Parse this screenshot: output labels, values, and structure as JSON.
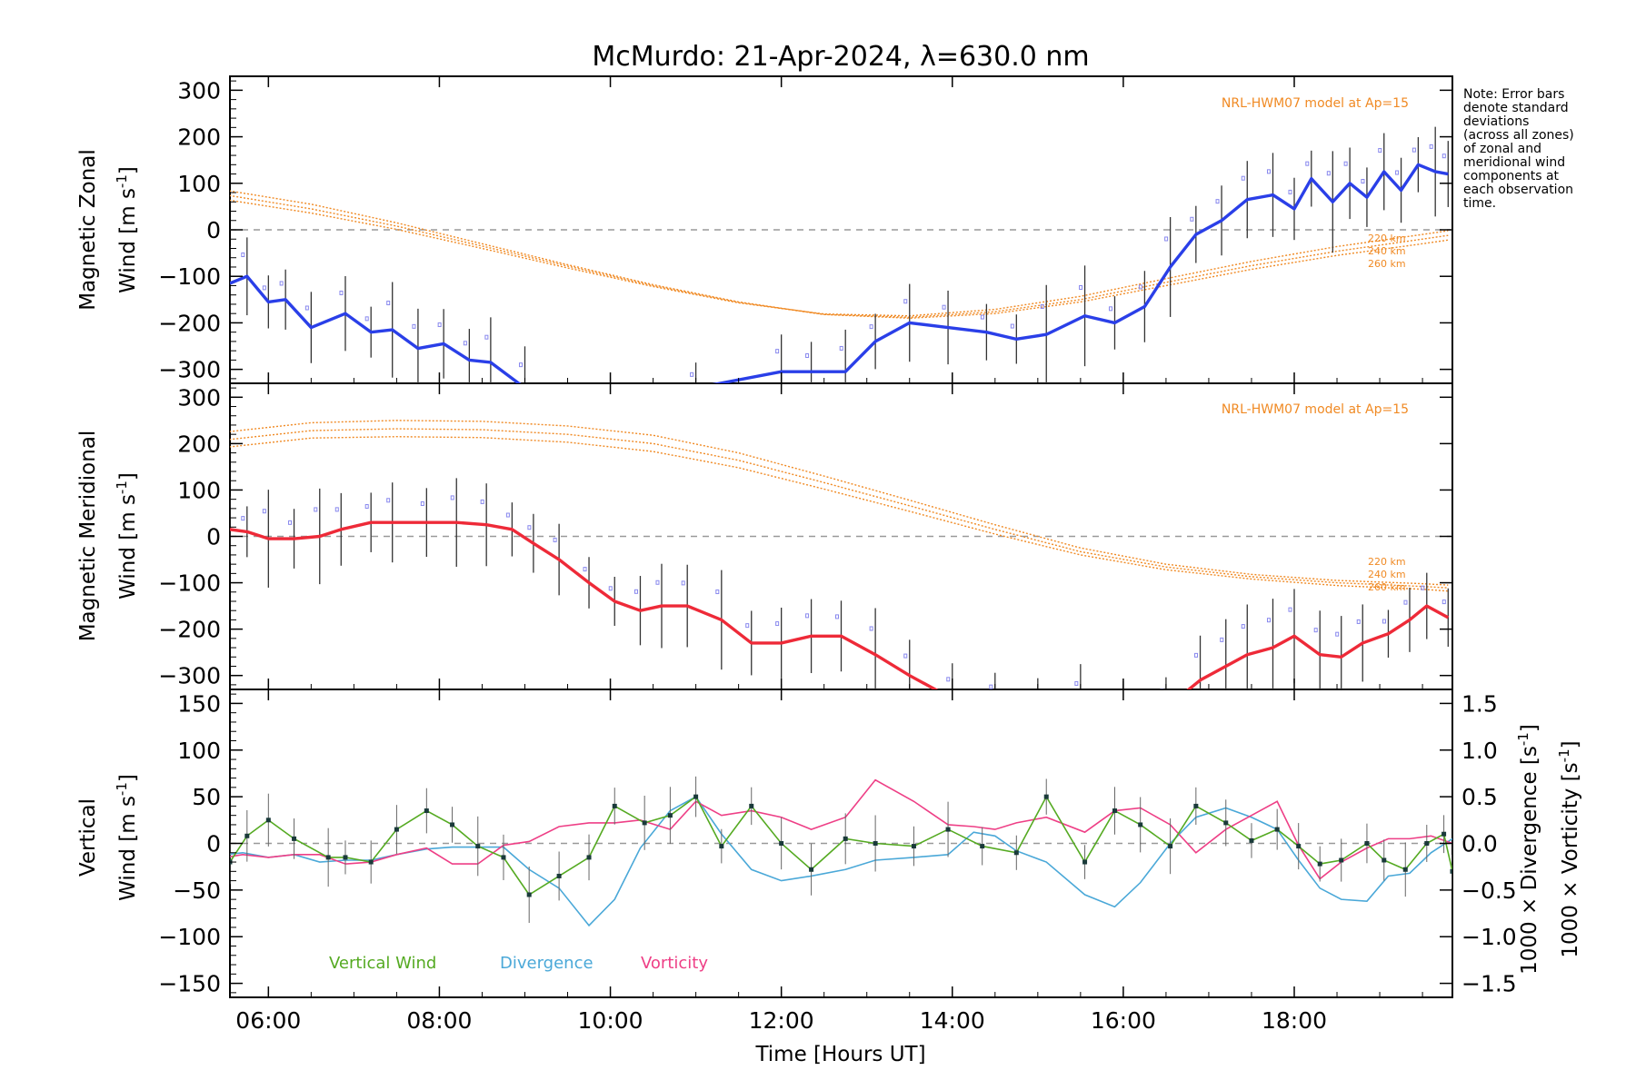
{
  "title": "McMurdo: 21-Apr-2024, λ=630.0 nm",
  "note_lines": [
    "Note: Error bars",
    "denote standard",
    "deviations",
    "(across all zones)",
    "of zonal and",
    "meridional wind",
    "components at",
    "each observation",
    "time."
  ],
  "colors": {
    "zonal": "#2a3fe8",
    "meridional": "#ee2a38",
    "vertical": "#55aa22",
    "divergence": "#4aa8d8",
    "vorticity": "#ee3f86",
    "model": "#f08a24",
    "zero_line": "#999999",
    "errorbar": "#333333"
  },
  "chart_data": [
    {
      "type": "line",
      "name": "zonal",
      "ylabel_line1": "Magnetic Zonal",
      "ylabel_line2_text": "Wind ",
      "ylabel_units": "[m s",
      "ylabel_sup": "-1",
      "ylabel_close": "]",
      "ylim": [
        -330,
        330
      ],
      "yticks": [
        -300,
        -200,
        -100,
        0,
        100,
        200,
        300
      ],
      "model_label": "NRL-HWM07 model at Ap=15",
      "model_alt_labels": [
        "220 km",
        "240 km",
        "260 km"
      ],
      "x": [
        5.55,
        5.75,
        6.0,
        6.2,
        6.5,
        6.9,
        7.2,
        7.45,
        7.75,
        8.05,
        8.35,
        8.6,
        9.0,
        11.0,
        12.0,
        12.35,
        12.75,
        13.1,
        13.5,
        13.95,
        14.4,
        14.75,
        15.1,
        15.55,
        15.9,
        16.25,
        16.55,
        16.85,
        17.15,
        17.45,
        17.75,
        18.0,
        18.2,
        18.45,
        18.65,
        18.85,
        19.05,
        19.25,
        19.45,
        19.65,
        19.8
      ],
      "values": [
        -115,
        -100,
        -155,
        -150,
        -210,
        -180,
        -220,
        -215,
        -255,
        -245,
        -280,
        -285,
        -340,
        -340,
        -305,
        -305,
        -305,
        -240,
        -200,
        -210,
        -220,
        -235,
        -225,
        -185,
        -200,
        -165,
        -80,
        -10,
        20,
        65,
        75,
        45,
        110,
        60,
        100,
        70,
        125,
        85,
        140,
        125,
        120
      ],
      "model_series": [
        {
          "name": "220 km",
          "x": [
            5.5,
            6.5,
            7.5,
            8.5,
            9.5,
            10.5,
            11.5,
            12.5,
            13.5,
            14.5,
            15.5,
            16.5,
            17.5,
            18.5,
            19.5,
            19.8
          ],
          "values": [
            85,
            55,
            15,
            -30,
            -75,
            -118,
            -155,
            -182,
            -190,
            -180,
            -155,
            -120,
            -85,
            -55,
            -30,
            -22
          ]
        },
        {
          "name": "240 km",
          "x": [
            5.5,
            6.5,
            7.5,
            8.5,
            9.5,
            10.5,
            11.5,
            12.5,
            13.5,
            14.5,
            15.5,
            16.5,
            17.5,
            18.5,
            19.5,
            19.8
          ],
          "values": [
            75,
            45,
            8,
            -35,
            -78,
            -120,
            -156,
            -182,
            -188,
            -176,
            -150,
            -113,
            -77,
            -46,
            -20,
            -12
          ]
        },
        {
          "name": "260 km",
          "x": [
            5.5,
            6.5,
            7.5,
            8.5,
            9.5,
            10.5,
            11.5,
            12.5,
            13.5,
            14.5,
            15.5,
            16.5,
            17.5,
            18.5,
            19.5,
            19.8
          ],
          "values": [
            65,
            36,
            1,
            -40,
            -82,
            -122,
            -157,
            -181,
            -185,
            -171,
            -143,
            -105,
            -68,
            -36,
            -10,
            -2
          ]
        }
      ]
    },
    {
      "type": "line",
      "name": "meridional",
      "ylabel_line1": "Magnetic Meridional",
      "ylabel_line2_text": "Wind ",
      "ylabel_units": "[m s",
      "ylabel_sup": "-1",
      "ylabel_close": "]",
      "ylim": [
        -330,
        330
      ],
      "yticks": [
        -300,
        -200,
        -100,
        0,
        100,
        200,
        300
      ],
      "model_label": "NRL-HWM07 model at Ap=15",
      "model_alt_labels": [
        "220 km",
        "240 km",
        "260 km"
      ],
      "x": [
        5.55,
        5.75,
        6.0,
        6.3,
        6.6,
        6.85,
        7.2,
        7.45,
        7.85,
        8.2,
        8.55,
        8.85,
        9.1,
        9.4,
        9.75,
        10.05,
        10.35,
        10.6,
        10.9,
        11.3,
        11.65,
        12.0,
        12.35,
        12.7,
        13.1,
        13.5,
        14.0,
        14.5,
        15.0,
        15.5,
        16.0,
        16.5,
        16.9,
        17.2,
        17.45,
        17.75,
        18.0,
        18.3,
        18.55,
        18.8,
        19.1,
        19.35,
        19.55,
        19.8
      ],
      "values": [
        15,
        10,
        -5,
        -5,
        0,
        15,
        30,
        30,
        30,
        30,
        25,
        15,
        -15,
        -50,
        -100,
        -140,
        -160,
        -150,
        -150,
        -180,
        -230,
        -230,
        -215,
        -215,
        -255,
        -300,
        -350,
        -360,
        -370,
        -370,
        -370,
        -370,
        -310,
        -280,
        -255,
        -240,
        -215,
        -255,
        -260,
        -230,
        -210,
        -180,
        -150,
        -175
      ],
      "model_series": [
        {
          "name": "220 km",
          "x": [
            5.5,
            6.5,
            7.5,
            8.5,
            9.5,
            10.5,
            11.5,
            12.5,
            13.5,
            14.5,
            15.5,
            16.5,
            17.5,
            18.5,
            19.5,
            19.8
          ],
          "values": [
            225,
            245,
            250,
            248,
            238,
            218,
            180,
            130,
            78,
            25,
            -25,
            -60,
            -82,
            -95,
            -102,
            -105
          ]
        },
        {
          "name": "240 km",
          "x": [
            5.5,
            6.5,
            7.5,
            8.5,
            9.5,
            10.5,
            11.5,
            12.5,
            13.5,
            14.5,
            15.5,
            16.5,
            17.5,
            18.5,
            19.5,
            19.8
          ],
          "values": [
            208,
            228,
            232,
            230,
            220,
            200,
            164,
            116,
            66,
            15,
            -33,
            -66,
            -87,
            -100,
            -108,
            -111
          ]
        },
        {
          "name": "260 km",
          "x": [
            5.5,
            6.5,
            7.5,
            8.5,
            9.5,
            10.5,
            11.5,
            12.5,
            13.5,
            14.5,
            15.5,
            16.5,
            17.5,
            18.5,
            19.5,
            19.8
          ],
          "values": [
            192,
            212,
            215,
            213,
            203,
            183,
            148,
            102,
            54,
            5,
            -40,
            -72,
            -92,
            -106,
            -114,
            -118
          ]
        }
      ]
    },
    {
      "type": "line",
      "name": "vertical",
      "ylabel_line1": "Vertical",
      "ylabel_line2_text": "Wind ",
      "ylabel_units": "[m s",
      "ylabel_sup": "-1",
      "ylabel_close": "]",
      "ylim": [
        -165,
        165
      ],
      "yticks": [
        -150,
        -100,
        -50,
        0,
        50,
        100,
        150
      ],
      "y2lim": [
        -1.65,
        1.65
      ],
      "y2ticks": [
        -1.5,
        -1.0,
        -0.5,
        0.0,
        0.5,
        1.0,
        1.5
      ],
      "y2ticklabels": [
        "−1.5",
        "−1.0",
        "−0.5",
        "0.0",
        "0.5",
        "1.0",
        "1.5"
      ],
      "y2label_div_prefix": "1000 × Divergence ",
      "y2label_vor_prefix": "1000 × Vorticity ",
      "y2label_units": "[s",
      "y2label_sup": "-1",
      "y2label_close": "]",
      "legend": [
        "Vertical Wind",
        "Divergence",
        "Vorticity"
      ],
      "series": [
        {
          "name": "Vertical Wind",
          "x": [
            5.55,
            5.75,
            6.0,
            6.3,
            6.7,
            6.9,
            7.2,
            7.5,
            7.85,
            8.15,
            8.45,
            8.75,
            9.05,
            9.4,
            9.75,
            10.05,
            10.4,
            10.7,
            11.0,
            11.3,
            11.65,
            12.0,
            12.35,
            12.75,
            13.1,
            13.55,
            13.95,
            14.35,
            14.75,
            15.1,
            15.55,
            15.9,
            16.2,
            16.55,
            16.85,
            17.2,
            17.5,
            17.8,
            18.05,
            18.3,
            18.55,
            18.85,
            19.05,
            19.3,
            19.55,
            19.75,
            19.85
          ],
          "values": [
            -20,
            8,
            25,
            5,
            -15,
            -15,
            -20,
            15,
            35,
            20,
            -3,
            -15,
            -55,
            -35,
            -15,
            40,
            22,
            30,
            50,
            -3,
            40,
            0,
            -28,
            5,
            0,
            -3,
            15,
            -3,
            -10,
            50,
            -20,
            35,
            20,
            -3,
            40,
            22,
            3,
            15,
            -3,
            -22,
            -18,
            0,
            -18,
            -28,
            0,
            10,
            -30
          ]
        },
        {
          "name": "Divergence",
          "x": [
            5.5,
            5.7,
            6.0,
            6.3,
            6.6,
            6.9,
            7.2,
            7.5,
            7.85,
            8.15,
            8.45,
            8.75,
            9.05,
            9.4,
            9.75,
            10.05,
            10.35,
            10.7,
            11.0,
            11.3,
            11.65,
            12.0,
            12.35,
            12.75,
            13.1,
            13.55,
            13.95,
            14.25,
            14.5,
            14.75,
            15.1,
            15.55,
            15.9,
            16.2,
            16.55,
            16.85,
            17.2,
            17.5,
            17.8,
            18.05,
            18.3,
            18.55,
            18.85,
            19.1,
            19.35,
            19.6,
            19.85
          ],
          "values": [
            -0.12,
            -0.1,
            -0.15,
            -0.12,
            -0.2,
            -0.18,
            -0.18,
            -0.12,
            -0.06,
            -0.04,
            -0.04,
            -0.04,
            -0.28,
            -0.48,
            -0.88,
            -0.6,
            -0.05,
            0.35,
            0.5,
            0.1,
            -0.28,
            -0.4,
            -0.35,
            -0.28,
            -0.18,
            -0.15,
            -0.12,
            0.12,
            0.08,
            -0.08,
            -0.2,
            -0.55,
            -0.68,
            -0.42,
            0.0,
            0.28,
            0.38,
            0.28,
            0.15,
            -0.18,
            -0.48,
            -0.6,
            -0.62,
            -0.35,
            -0.32,
            -0.1,
            0.05
          ]
        },
        {
          "name": "Vorticity",
          "x": [
            5.5,
            5.7,
            6.0,
            6.3,
            6.6,
            6.9,
            7.2,
            7.5,
            7.85,
            8.15,
            8.45,
            8.75,
            9.05,
            9.4,
            9.75,
            10.05,
            10.35,
            10.7,
            11.0,
            11.3,
            11.65,
            12.0,
            12.35,
            12.75,
            13.1,
            13.55,
            13.95,
            14.25,
            14.5,
            14.75,
            15.1,
            15.55,
            15.9,
            16.2,
            16.55,
            16.85,
            17.2,
            17.5,
            17.8,
            18.05,
            18.3,
            18.55,
            18.85,
            19.1,
            19.35,
            19.6,
            19.85
          ],
          "values": [
            -0.15,
            -0.12,
            -0.15,
            -0.12,
            -0.12,
            -0.22,
            -0.2,
            -0.12,
            -0.05,
            -0.22,
            -0.22,
            -0.02,
            0.02,
            0.18,
            0.22,
            0.22,
            0.25,
            0.15,
            0.45,
            0.3,
            0.35,
            0.28,
            0.15,
            0.28,
            0.68,
            0.45,
            0.2,
            0.18,
            0.15,
            0.22,
            0.28,
            0.12,
            0.35,
            0.38,
            0.2,
            -0.1,
            0.15,
            0.3,
            0.45,
            -0.02,
            -0.38,
            -0.2,
            -0.05,
            0.05,
            0.05,
            0.08,
            0.0
          ]
        }
      ]
    }
  ],
  "xaxis": {
    "label": "Time [Hours UT]",
    "xlim": [
      5.55,
      19.85
    ],
    "ticks": [
      6,
      8,
      10,
      12,
      14,
      16,
      18
    ],
    "ticklabels": [
      "06:00",
      "08:00",
      "10:00",
      "12:00",
      "14:00",
      "16:00",
      "18:00"
    ]
  }
}
